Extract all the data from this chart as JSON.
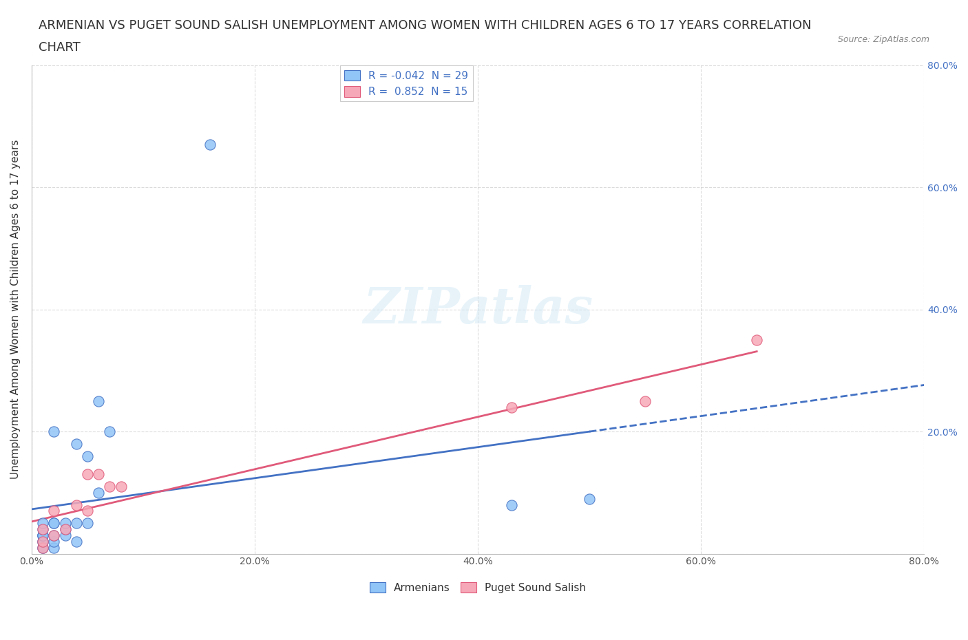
{
  "title_line1": "ARMENIAN VS PUGET SOUND SALISH UNEMPLOYMENT AMONG WOMEN WITH CHILDREN AGES 6 TO 17 YEARS CORRELATION",
  "title_line2": "CHART",
  "source": "Source: ZipAtlas.com",
  "xlabel": "",
  "ylabel": "Unemployment Among Women with Children Ages 6 to 17 years",
  "xlim": [
    0.0,
    0.8
  ],
  "ylim": [
    0.0,
    0.8
  ],
  "xticks": [
    0.0,
    0.2,
    0.4,
    0.6,
    0.8
  ],
  "yticks": [
    0.0,
    0.2,
    0.4,
    0.6,
    0.8
  ],
  "xtick_labels": [
    "0.0%",
    "20.0%",
    "40.0%",
    "60.0%",
    "80.0%"
  ],
  "ytick_labels_left": [
    "",
    "",
    "",
    "",
    ""
  ],
  "ytick_labels_right": [
    "",
    "20.0%",
    "40.0%",
    "60.0%",
    "80.0%"
  ],
  "armenian_R": -0.042,
  "armenian_N": 29,
  "salish_R": 0.852,
  "salish_N": 15,
  "armenian_color": "#92c5f7",
  "salish_color": "#f7a8b8",
  "armenian_line_color": "#4472C4",
  "salish_line_color": "#e05a7a",
  "background_color": "#ffffff",
  "grid_color": "#cccccc",
  "watermark_text": "ZIPatlas",
  "armenian_x": [
    0.01,
    0.01,
    0.01,
    0.01,
    0.01,
    0.01,
    0.01,
    0.01,
    0.01,
    0.02,
    0.02,
    0.02,
    0.02,
    0.02,
    0.02,
    0.03,
    0.03,
    0.03,
    0.04,
    0.04,
    0.04,
    0.05,
    0.05,
    0.06,
    0.06,
    0.07,
    0.16,
    0.43,
    0.5
  ],
  "armenian_y": [
    0.01,
    0.01,
    0.02,
    0.02,
    0.03,
    0.03,
    0.03,
    0.04,
    0.05,
    0.01,
    0.02,
    0.03,
    0.05,
    0.05,
    0.2,
    0.03,
    0.04,
    0.05,
    0.02,
    0.05,
    0.18,
    0.05,
    0.16,
    0.1,
    0.25,
    0.2,
    0.67,
    0.08,
    0.09
  ],
  "salish_x": [
    0.01,
    0.01,
    0.01,
    0.02,
    0.02,
    0.03,
    0.04,
    0.05,
    0.05,
    0.06,
    0.07,
    0.08,
    0.43,
    0.55,
    0.65
  ],
  "salish_y": [
    0.01,
    0.02,
    0.04,
    0.03,
    0.07,
    0.04,
    0.08,
    0.07,
    0.13,
    0.13,
    0.11,
    0.11,
    0.24,
    0.25,
    0.35
  ],
  "legend_box_color": "#ffffff",
  "title_fontsize": 13,
  "axis_label_fontsize": 11,
  "tick_fontsize": 10,
  "legend_fontsize": 11
}
